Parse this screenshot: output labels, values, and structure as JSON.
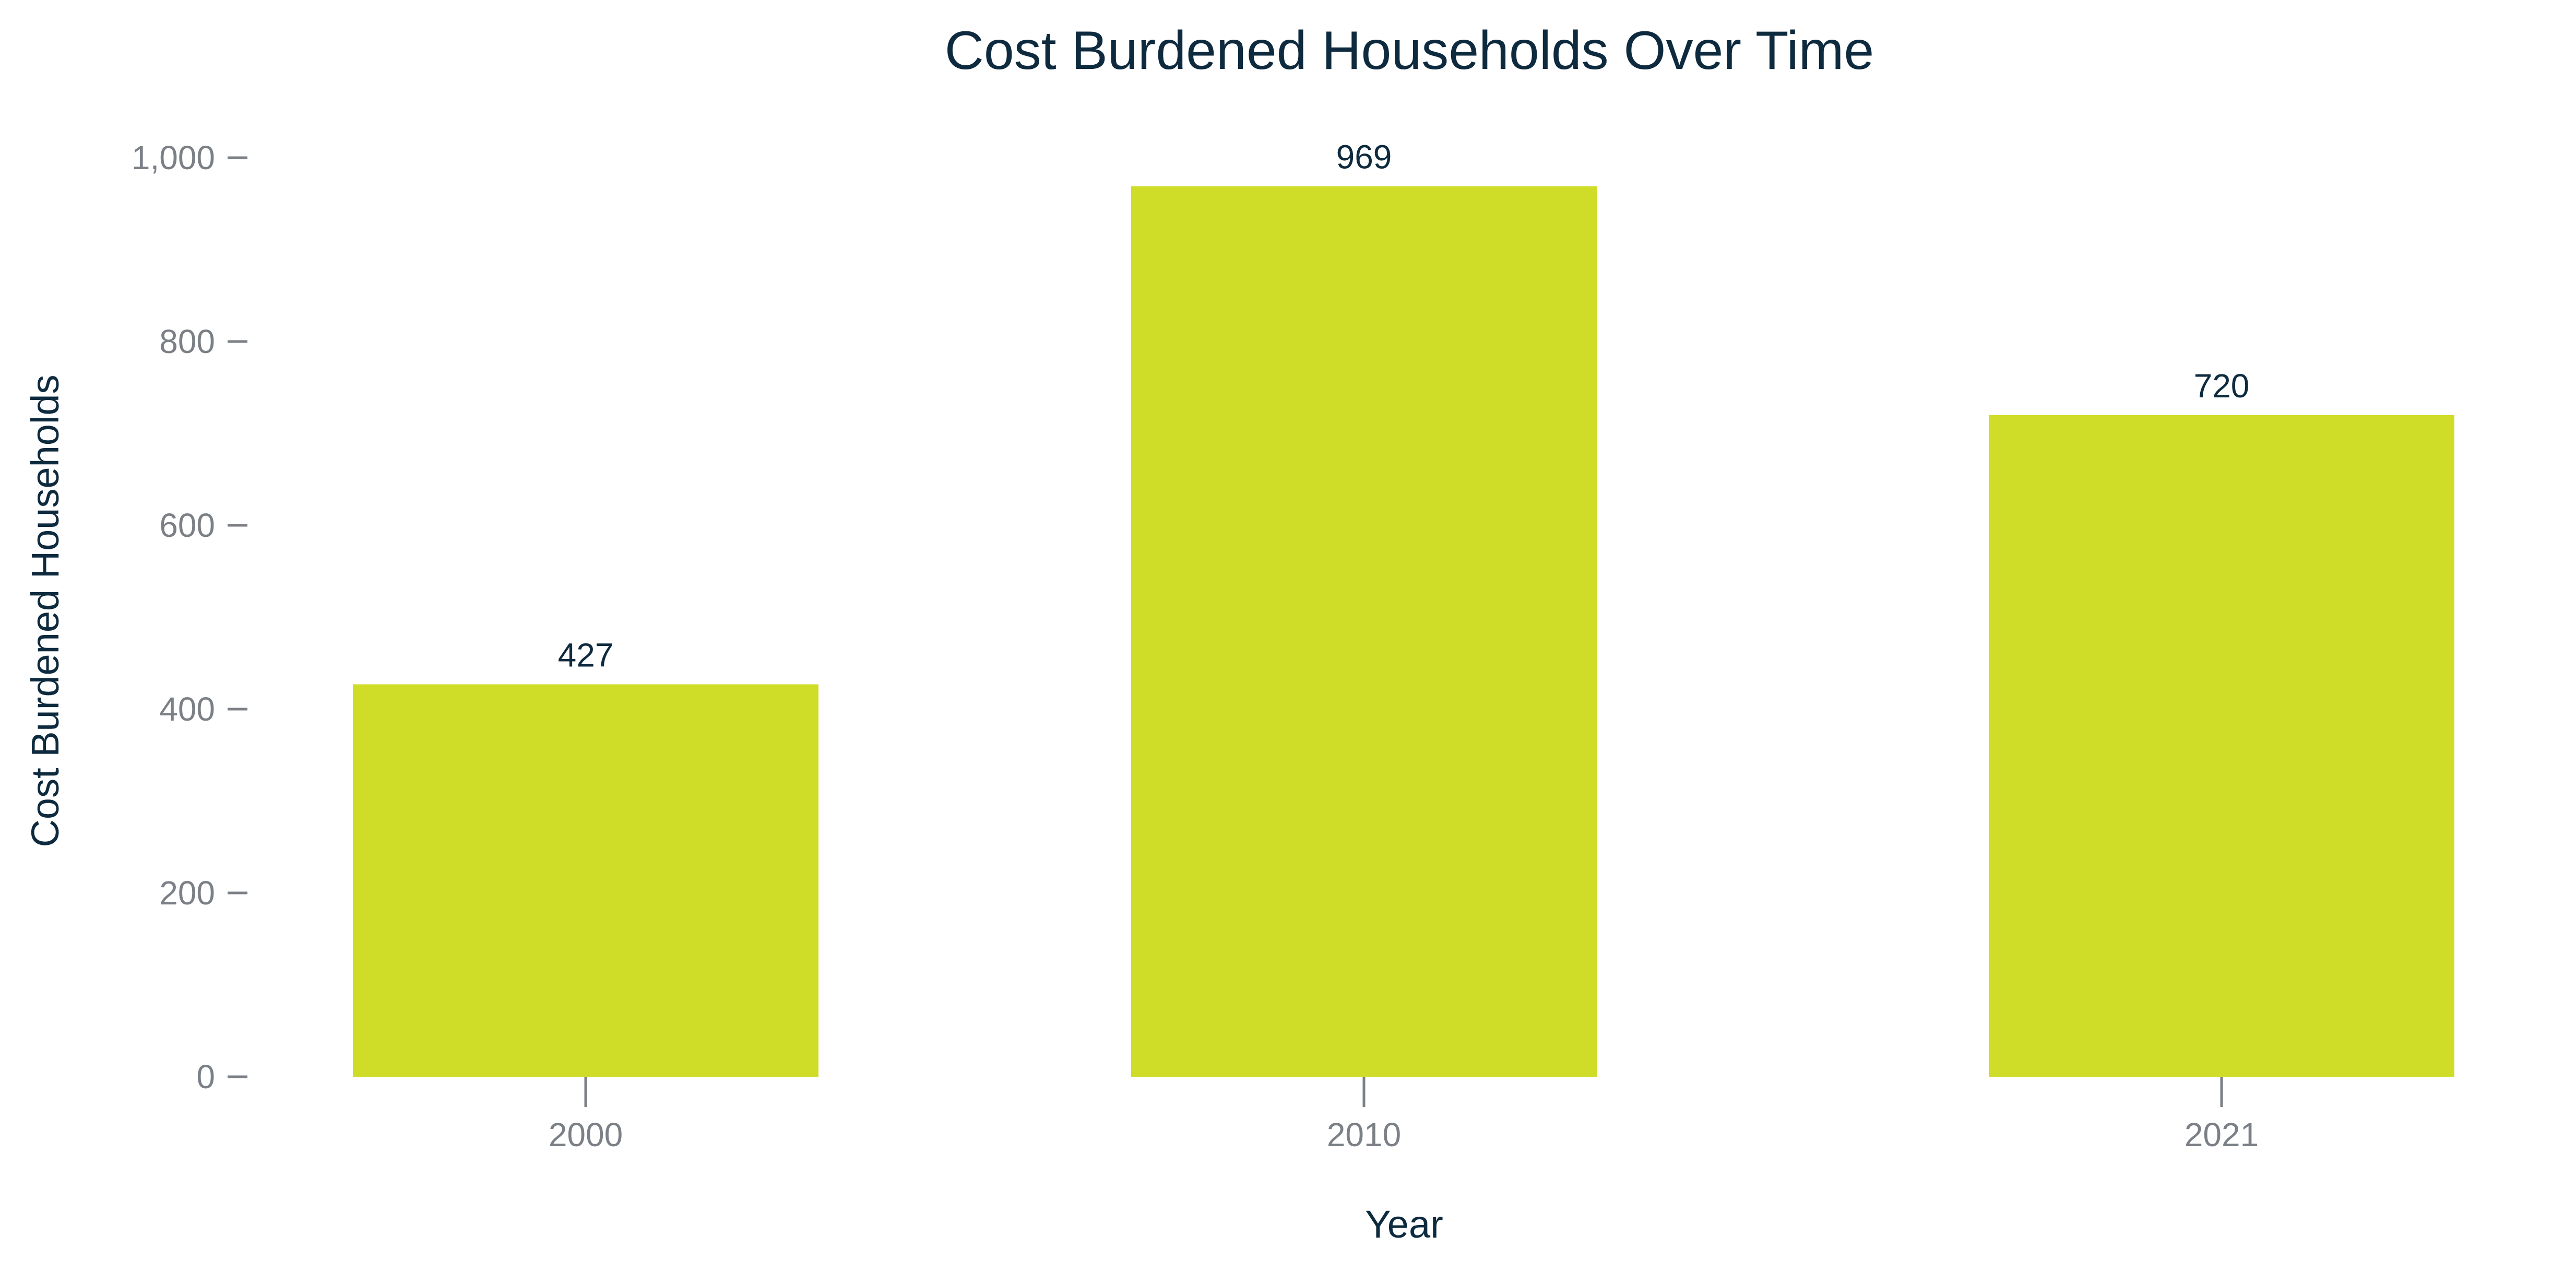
{
  "chart_data": {
    "type": "bar",
    "title": "Cost Burdened Households Over Time",
    "xlabel": "Year",
    "ylabel": "Cost Burdened Households",
    "categories": [
      "2000",
      "2010",
      "2021"
    ],
    "values": [
      427,
      969,
      720
    ],
    "data_labels": [
      "427",
      "969",
      "720"
    ],
    "ylim": [
      0,
      1000
    ],
    "yticks": [
      0,
      200,
      400,
      600,
      800,
      1000
    ],
    "ytick_labels": [
      "0",
      "200",
      "400",
      "600",
      "800",
      "1,000"
    ],
    "bar_color": "#d0dd28",
    "grid": false,
    "legend": false
  }
}
